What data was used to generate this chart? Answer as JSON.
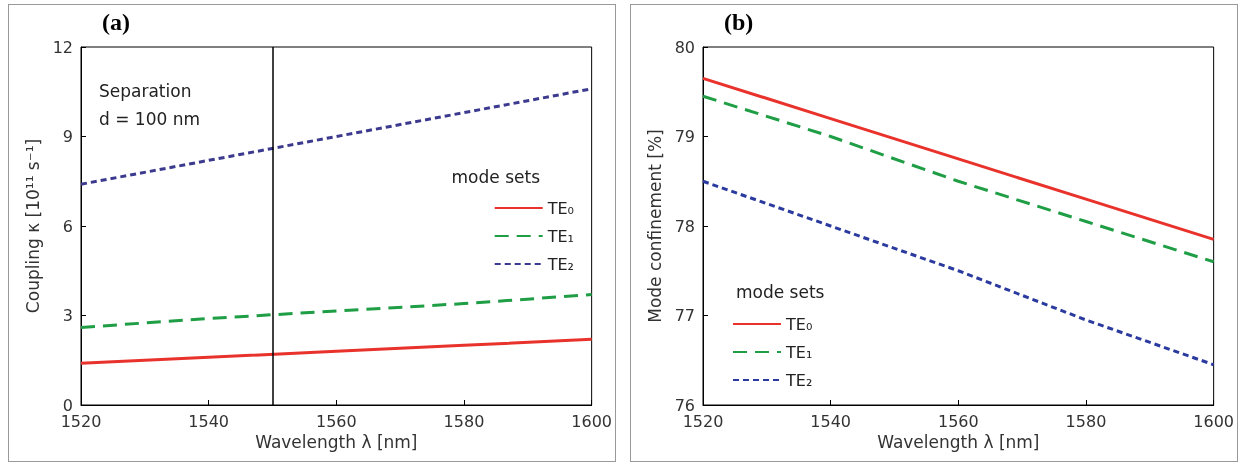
{
  "chart_data": [
    {
      "type": "line",
      "title": "(a)",
      "xlabel": "Wavelength λ [nm]",
      "ylabel": "Coupling κ [10¹¹ s⁻¹]",
      "legend_title": "mode sets",
      "legend": "right",
      "grid": false,
      "marker": "none",
      "xlim": [
        1520,
        1600
      ],
      "xticks": [
        1520,
        1540,
        1560,
        1580,
        1600
      ],
      "ylim": [
        0,
        12
      ],
      "yticks": [
        0,
        3,
        6,
        9,
        12
      ],
      "x": [
        1520,
        1540,
        1560,
        1580,
        1600
      ],
      "annotations": [
        "Separation\nd = 100 nm"
      ],
      "ref_lines": [
        {
          "axis": "x",
          "value": 1550,
          "color": "#000000"
        }
      ],
      "series": [
        {
          "name": "TE₀",
          "color": "#e8322b",
          "line_style": "solid",
          "values": [
            1.4,
            1.6,
            1.8,
            2.0,
            2.2
          ]
        },
        {
          "name": "TE₁",
          "color": "#1f9e45",
          "line_style": "dashed",
          "values": [
            2.6,
            2.9,
            3.15,
            3.4,
            3.7
          ]
        },
        {
          "name": "TE₂",
          "color": "#3b3a8e",
          "line_style": "dotted",
          "values": [
            7.4,
            8.2,
            9.0,
            9.8,
            10.6
          ]
        }
      ]
    },
    {
      "type": "line",
      "title": "(b)",
      "xlabel": "Wavelength λ [nm]",
      "ylabel": "Mode confinement [%]",
      "legend_title": "mode sets",
      "legend": "bottom left",
      "grid": false,
      "marker": "none",
      "xlim": [
        1520,
        1600
      ],
      "xticks": [
        1520,
        1540,
        1560,
        1580,
        1600
      ],
      "ylim": [
        76,
        80
      ],
      "yticks": [
        76,
        77,
        78,
        79,
        80
      ],
      "x": [
        1520,
        1540,
        1560,
        1580,
        1600
      ],
      "series": [
        {
          "name": "TE₀",
          "color": "#e8322b",
          "line_style": "solid",
          "values": [
            79.65,
            79.2,
            78.75,
            78.3,
            77.85
          ]
        },
        {
          "name": "TE₁",
          "color": "#1f9e45",
          "line_style": "dashed",
          "values": [
            79.45,
            79.0,
            78.5,
            78.05,
            77.6
          ]
        },
        {
          "name": "TE₂",
          "color": "#2a3a9e",
          "line_style": "dotted",
          "values": [
            78.5,
            78.0,
            77.5,
            76.95,
            76.45
          ]
        }
      ]
    }
  ]
}
